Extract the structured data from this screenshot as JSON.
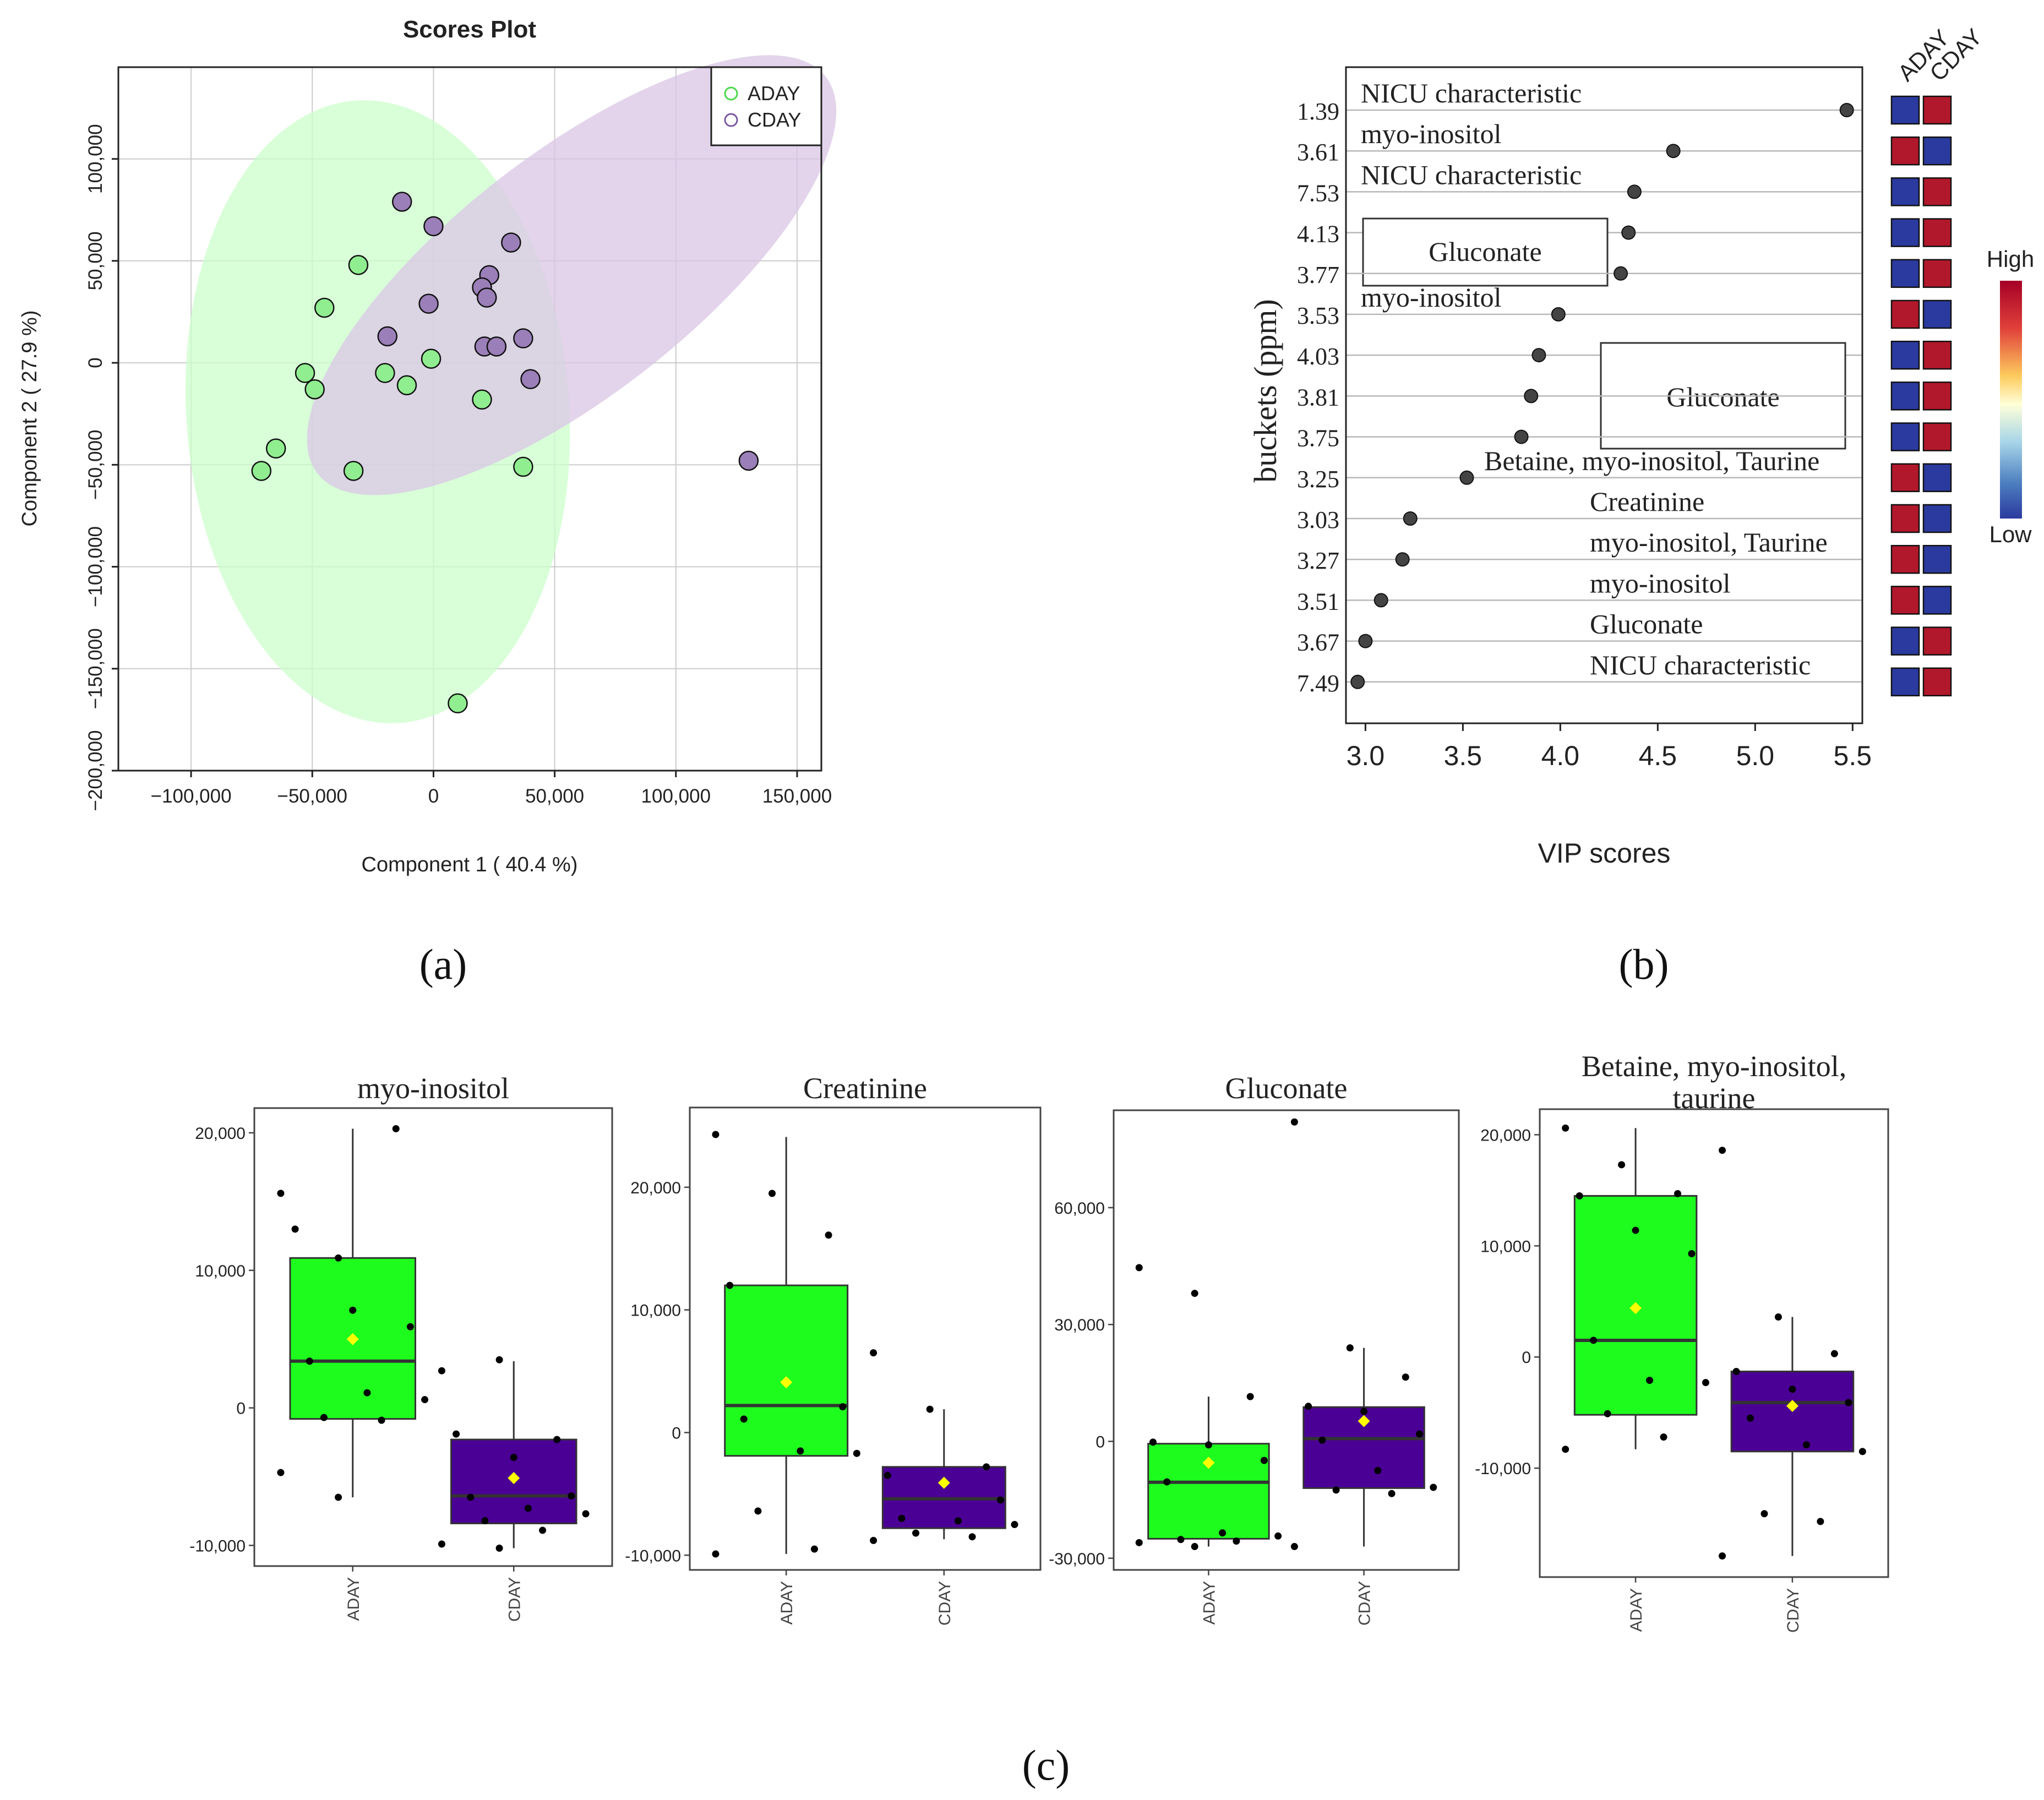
{
  "colors": {
    "aday_fill": "#90ee90",
    "aday_ellipse": "#ccffcc",
    "cday_fill": "#9b7fb8",
    "cday_ellipse": "#d9c6e6",
    "box_green": "#1efc1e",
    "box_purple": "#4b0095",
    "mean_marker": "#ffff00",
    "heat_high": "#b2182b",
    "heat_low": "#2b3a9e",
    "grid": "#cccccc"
  },
  "chart_data": [
    {
      "id": "scores",
      "type": "scatter",
      "panel_label": "(a)",
      "title": "Scores Plot",
      "xlabel": "Component 1 ( 40.4 %)",
      "ylabel": "Component 2 ( 27.9 %)",
      "xlim": [
        -130000,
        160000
      ],
      "ylim": [
        -200000,
        145000
      ],
      "xticks": [
        -100000,
        -50000,
        0,
        50000,
        100000,
        150000
      ],
      "xtick_labels": [
        "−100,000",
        "−50,000",
        "0",
        "50,000",
        "100,000",
        "150,000"
      ],
      "yticks": [
        100000,
        50000,
        0,
        -50000,
        -100000,
        -150000,
        -200000
      ],
      "ytick_labels": [
        "100,000",
        "50,000",
        "0",
        "−50,000",
        "−100,000",
        "−150,000",
        "−200,000"
      ],
      "legend": {
        "position": "top-right",
        "entries": [
          "ADAY",
          "CDAY"
        ]
      },
      "ellipses": [
        {
          "name": "ADAY",
          "cx": -23000,
          "cy": -24000,
          "rx": 79000,
          "ry": 153000,
          "angle": -4
        },
        {
          "name": "CDAY",
          "cx": 57000,
          "cy": 43000,
          "rx": 133000,
          "ry": 59000,
          "angle": -38
        }
      ],
      "series": [
        {
          "name": "ADAY",
          "points": [
            [
              -31000,
              48000
            ],
            [
              -45000,
              27000
            ],
            [
              -53000,
              -5000
            ],
            [
              -49000,
              -13000
            ],
            [
              -20000,
              -5000
            ],
            [
              -11000,
              -11000
            ],
            [
              -1000,
              2000
            ],
            [
              20000,
              -18000
            ],
            [
              -65000,
              -42000
            ],
            [
              -71000,
              -53000
            ],
            [
              -33000,
              -53000
            ],
            [
              37000,
              -51000
            ],
            [
              10000,
              -167000
            ]
          ]
        },
        {
          "name": "CDAY",
          "points": [
            [
              -13000,
              79000
            ],
            [
              0,
              67000
            ],
            [
              32000,
              59000
            ],
            [
              23000,
              43000
            ],
            [
              20000,
              37000
            ],
            [
              22000,
              32000
            ],
            [
              -2000,
              29000
            ],
            [
              -19000,
              13000
            ],
            [
              21000,
              8000
            ],
            [
              26000,
              8000
            ],
            [
              37000,
              12000
            ],
            [
              40000,
              -8000
            ],
            [
              130000,
              -48000
            ]
          ]
        }
      ]
    },
    {
      "id": "vip",
      "type": "scatter",
      "panel_label": "(b)",
      "xlabel": "VIP scores",
      "ylabel": "buckets (ppm)",
      "xlim": [
        2.9,
        5.55
      ],
      "xticks": [
        3.0,
        3.5,
        4.0,
        4.5,
        5.0,
        5.5
      ],
      "xtick_labels": [
        "3.0",
        "3.5",
        "4.0",
        "4.5",
        "5.0",
        "5.5"
      ],
      "heatmap_columns": [
        "ADAY",
        "CDAY"
      ],
      "heatmap_legend": {
        "high": "High",
        "low": "Low"
      },
      "rows": [
        {
          "bucket": "1.39",
          "vip": 5.47,
          "label": "NICU characteristic",
          "label_side": "left",
          "boxed": false,
          "heat": [
            "low",
            "high"
          ]
        },
        {
          "bucket": "3.61",
          "vip": 4.58,
          "label": "myo-inositol",
          "label_side": "left",
          "boxed": false,
          "heat": [
            "high",
            "low"
          ]
        },
        {
          "bucket": "7.53",
          "vip": 4.38,
          "label": "NICU characteristic",
          "label_side": "left",
          "boxed": false,
          "heat": [
            "low",
            "high"
          ]
        },
        {
          "bucket": "4.13",
          "vip": 4.35,
          "label": "Gluconate",
          "label_side": "left",
          "boxed": true,
          "heat": [
            "low",
            "high"
          ]
        },
        {
          "bucket": "3.77",
          "vip": 4.31,
          "label": "",
          "label_side": "left",
          "boxed": false,
          "heat": [
            "low",
            "high"
          ]
        },
        {
          "bucket": "3.53",
          "vip": 3.99,
          "label": "myo-inositol",
          "label_side": "left",
          "boxed": false,
          "heat": [
            "high",
            "low"
          ]
        },
        {
          "bucket": "4.03",
          "vip": 3.89,
          "label": "Gluconate",
          "label_side": "right",
          "boxed": true,
          "heat": [
            "low",
            "high"
          ]
        },
        {
          "bucket": "3.81",
          "vip": 3.85,
          "label": "",
          "label_side": "right",
          "boxed": false,
          "heat": [
            "low",
            "high"
          ]
        },
        {
          "bucket": "3.75",
          "vip": 3.8,
          "label": "",
          "label_side": "right",
          "boxed": false,
          "heat": [
            "low",
            "high"
          ]
        },
        {
          "bucket": "3.25",
          "vip": 3.52,
          "label": "Betaine, myo-inositol, Taurine",
          "label_side": "right",
          "boxed": false,
          "heat": [
            "high",
            "low"
          ]
        },
        {
          "bucket": "3.03",
          "vip": 3.23,
          "label": "Creatinine",
          "label_side": "right",
          "boxed": false,
          "heat": [
            "high",
            "low"
          ]
        },
        {
          "bucket": "3.27",
          "vip": 3.19,
          "label": "myo-inositol, Taurine",
          "label_side": "right",
          "boxed": false,
          "heat": [
            "high",
            "low"
          ]
        },
        {
          "bucket": "3.51",
          "vip": 3.08,
          "label": "myo-inositol",
          "label_side": "right",
          "boxed": false,
          "heat": [
            "high",
            "low"
          ]
        },
        {
          "bucket": "3.67",
          "vip": 3.0,
          "label": "Gluconate",
          "label_side": "right",
          "boxed": false,
          "heat": [
            "low",
            "high"
          ]
        },
        {
          "bucket": "7.49",
          "vip": 2.96,
          "label": "NICU characteristic",
          "label_side": "right",
          "boxed": false,
          "heat": [
            "low",
            "high"
          ]
        }
      ]
    },
    {
      "id": "box-myo-inositol",
      "type": "box",
      "panel_label": "(c)",
      "title": "myo-inositol",
      "categories": [
        "ADAY",
        "CDAY"
      ],
      "ylim": [
        -11500,
        21800
      ],
      "yticks": [
        20000,
        10000,
        0,
        -10000
      ],
      "ytick_labels": [
        "20,000",
        "10,000",
        "0",
        "-10,000"
      ],
      "boxes": [
        {
          "name": "ADAY",
          "whisker_low": -6500,
          "q1": -800,
          "median": 3400,
          "q3": 10900,
          "whisker_high": 20300,
          "mean": 5000
        },
        {
          "name": "CDAY",
          "whisker_low": -10200,
          "q1": -8400,
          "median": -6400,
          "q3": -2300,
          "whisker_high": 3400,
          "mean": -5100
        }
      ],
      "points": [
        {
          "group": "ADAY",
          "values": [
            15600,
            10900,
            20300,
            13000,
            7100,
            5900,
            3400,
            1100,
            600,
            -700,
            -900,
            -4700,
            -6500
          ]
        },
        {
          "group": "CDAY",
          "values": [
            2700,
            3500,
            -2300,
            -1900,
            -3600,
            -6400,
            -6500,
            -7300,
            -7700,
            -8200,
            -8900,
            -9900,
            -10200
          ]
        }
      ]
    },
    {
      "id": "box-creatinine",
      "type": "box",
      "title": "Creatinine",
      "categories": [
        "ADAY",
        "CDAY"
      ],
      "ylim": [
        -11200,
        26500
      ],
      "yticks": [
        20000,
        10000,
        0,
        -10000
      ],
      "ytick_labels": [
        "20,000",
        "10,000",
        "0",
        "-10,000"
      ],
      "boxes": [
        {
          "name": "ADAY",
          "whisker_low": -9900,
          "q1": -1900,
          "median": 2200,
          "q3": 12000,
          "whisker_high": 24100,
          "mean": 4100
        },
        {
          "name": "CDAY",
          "whisker_low": -8700,
          "q1": -7800,
          "median": -5400,
          "q3": -2800,
          "whisker_high": 1900,
          "mean": -4100
        }
      ],
      "points": [
        {
          "group": "ADAY",
          "values": [
            24300,
            19500,
            16100,
            12000,
            4100,
            2100,
            1100,
            -1500,
            -1700,
            -6400,
            -9500,
            -9900
          ]
        },
        {
          "group": "CDAY",
          "values": [
            6500,
            1900,
            -2800,
            -3500,
            -4100,
            -5500,
            -7000,
            -7200,
            -7500,
            -8200,
            -8500,
            -8800
          ]
        }
      ]
    },
    {
      "id": "box-gluconate",
      "type": "box",
      "title": "Gluconate",
      "categories": [
        "ADAY",
        "CDAY"
      ],
      "ylim": [
        -33000,
        85000
      ],
      "yticks": [
        60000,
        30000,
        0,
        -30000
      ],
      "ytick_labels": [
        "60,000",
        "30,000",
        "0",
        "-30,000"
      ],
      "boxes": [
        {
          "name": "ADAY",
          "whisker_low": -27000,
          "q1": -25000,
          "median": -10500,
          "q3": -600,
          "whisker_high": 11500,
          "mean": -5500
        },
        {
          "name": "CDAY",
          "whisker_low": -27000,
          "q1": -12000,
          "median": 700,
          "q3": 8800,
          "whisker_high": 24000,
          "mean": 5200
        }
      ],
      "points": [
        {
          "group": "ADAY",
          "values": [
            44600,
            38000,
            11500,
            -200,
            -900,
            -4900,
            -10400,
            -23500,
            -24300,
            -25200,
            -25600,
            -26000,
            -27000
          ]
        },
        {
          "group": "CDAY",
          "values": [
            82000,
            24000,
            16500,
            9000,
            7700,
            1900,
            300,
            -7500,
            -11800,
            -12500,
            -13400,
            -27000
          ]
        }
      ]
    },
    {
      "id": "box-betaine",
      "type": "box",
      "title": "Betaine, myo-inositol,\ntaurine",
      "categories": [
        "ADAY",
        "CDAY"
      ],
      "ylim": [
        -19800,
        22300
      ],
      "yticks": [
        20000,
        10000,
        0,
        -10000
      ],
      "ytick_labels": [
        "20,000",
        "10,000",
        "0",
        "-10,000"
      ],
      "boxes": [
        {
          "name": "ADAY",
          "whisker_low": -8300,
          "q1": -5200,
          "median": 1500,
          "q3": 14500,
          "whisker_high": 20600,
          "mean": 4400
        },
        {
          "name": "CDAY",
          "whisker_low": -17900,
          "q1": -8500,
          "median": -4100,
          "q3": -1300,
          "whisker_high": 3600,
          "mean": -4400
        }
      ],
      "points": [
        {
          "group": "ADAY",
          "values": [
            20600,
            17300,
            14700,
            14500,
            11400,
            9300,
            1500,
            -2100,
            -2300,
            -5100,
            -7200,
            -8300
          ]
        },
        {
          "group": "CDAY",
          "values": [
            18600,
            3600,
            300,
            -1300,
            -2900,
            -4100,
            -5500,
            -7900,
            -8500,
            -14100,
            -14800,
            -17900
          ]
        }
      ]
    }
  ]
}
